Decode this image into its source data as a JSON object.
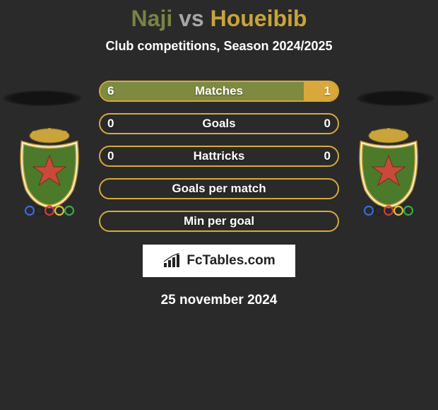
{
  "title": {
    "player1": "Naji",
    "vs": "vs",
    "player2": "Houeibib"
  },
  "subtitle": "Club competitions, Season 2024/2025",
  "colors": {
    "left_fill": "#7e8a3f",
    "right_fill": "#d8a93a",
    "border": "#d8a93a",
    "background": "#2a2a2a",
    "title_p1": "#778344",
    "title_p2": "#c9a43a",
    "title_vs": "#a6a6a6"
  },
  "bars": [
    {
      "label": "Matches",
      "left": "6",
      "right": "1",
      "left_pct": 85.7,
      "right_pct": 14.3
    },
    {
      "label": "Goals",
      "left": "0",
      "right": "0",
      "left_pct": 0,
      "right_pct": 0
    },
    {
      "label": "Hattricks",
      "left": "0",
      "right": "0",
      "left_pct": 0,
      "right_pct": 0
    },
    {
      "label": "Goals per match",
      "left": "",
      "right": "",
      "left_pct": 0,
      "right_pct": 0
    },
    {
      "label": "Min per goal",
      "left": "",
      "right": "",
      "left_pct": 0,
      "right_pct": 0
    }
  ],
  "footer_brand": "FcTables.com",
  "date": "25 november 2024",
  "crest": {
    "shield_fill": "#4a7a2a",
    "shield_stroke": "#c9a43a",
    "star_fill": "#c94a3a",
    "crown_fill": "#c9a43a",
    "rings": [
      "#3a6ad8",
      "#222222",
      "#d83a3a",
      "#d8c23a",
      "#3aa84a"
    ]
  }
}
